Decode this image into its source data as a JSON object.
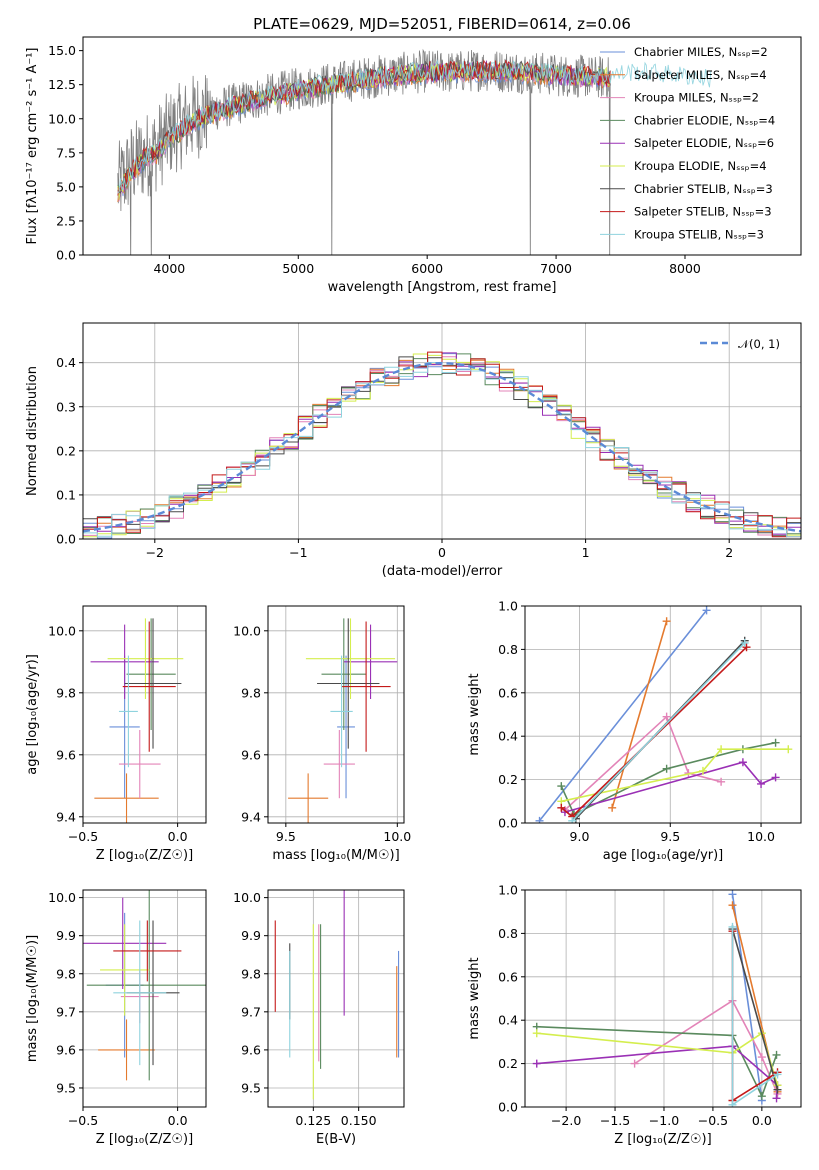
{
  "colors": [
    "#6a8fd9",
    "#e47a2e",
    "#e384b8",
    "#5a8a5e",
    "#9a30b5",
    "#d4ee4e",
    "#4a4a4a",
    "#c41a1a",
    "#8fd3de"
  ],
  "chart_data": [
    {
      "id": "spectrum",
      "type": "line",
      "title": "PLATE=0629, MJD=52051, FIBERID=0614, z=0.06",
      "xlabel": "wavelength [Angstrom, rest frame]",
      "ylabel": "Flux [fλ10⁻¹⁷ erg cm⁻² s⁻¹ A⁻¹]",
      "xlim": [
        3330,
        8900
      ],
      "ylim": [
        0,
        16
      ],
      "xticks": [
        4000,
        5000,
        6000,
        7000,
        8000
      ],
      "yticks": [
        0.0,
        2.5,
        5.0,
        7.5,
        10.0,
        12.5,
        15.0
      ],
      "grid": false,
      "legend_position": "top-right",
      "legend": [
        "Chabrier MILES, Nₛₛₚ=2",
        "Salpeter MILES, Nₛₛₚ=4",
        "Kroupa MILES, Nₛₛₚ=2",
        "Chabrier ELODIE, Nₛₛₚ=4",
        "Salpeter ELODIE, Nₛₛₚ=6",
        "Kroupa ELODIE, Nₛₛₚ=4",
        "Chabrier STELIB, Nₛₛₚ=3",
        "Salpeter STELIB, Nₛₛₚ=3",
        "Kroupa STELIB, Nₛₛₚ=3"
      ],
      "data_series": {
        "name": "data",
        "x": [
          3600,
          3700,
          3800,
          3900,
          4000,
          4200,
          4400,
          4600,
          4800,
          5000,
          5200,
          5400,
          5600,
          5800,
          6000,
          6200,
          6400,
          6600,
          6800,
          7000,
          7200,
          7400
        ],
        "y": [
          5.0,
          6.5,
          7.2,
          7.8,
          8.9,
          10.2,
          10.8,
          11.3,
          11.8,
          12.2,
          12.5,
          12.8,
          13.1,
          13.3,
          13.5,
          13.4,
          13.6,
          13.5,
          13.4,
          13.2,
          13.1,
          13.0
        ]
      },
      "model_series": {
        "x": [
          3600,
          3700,
          3800,
          3900,
          4000,
          4200,
          4400,
          4600,
          4800,
          5000,
          5200,
          5400,
          5600,
          5800,
          6000,
          6200,
          6400,
          6600,
          6800,
          7000,
          7200,
          7400,
          7600,
          7800,
          8000,
          8200
        ],
        "y": [
          4.5,
          6.0,
          7.0,
          7.5,
          8.5,
          9.9,
          10.6,
          11.2,
          11.6,
          12.1,
          12.4,
          12.7,
          13.0,
          13.2,
          13.4,
          13.4,
          13.5,
          13.5,
          13.4,
          13.2,
          13.1,
          13.0,
          13.3,
          13.2,
          13.0,
          12.8
        ]
      }
    },
    {
      "id": "residuals",
      "type": "histogram",
      "xlabel": "(data-model)/error",
      "ylabel": "Normed distribution",
      "xlim": [
        -2.5,
        2.5
      ],
      "ylim": [
        0,
        0.49
      ],
      "xticks": [
        -2,
        -1,
        0,
        1,
        2
      ],
      "yticks": [
        0.0,
        0.1,
        0.2,
        0.3,
        0.4
      ],
      "grid": true,
      "legend": [
        "𝒩(0, 1)"
      ],
      "legend_position": "top-right",
      "bin_width": 0.1
    },
    {
      "id": "age-vs-Z",
      "type": "errorbar",
      "xlabel": "Z [log₁₀(Z/Z☉)]",
      "ylabel": "age  [log₁₀(age/yr)]",
      "xlim": [
        -0.5,
        0.15
      ],
      "ylim": [
        9.38,
        10.08
      ],
      "xticks": [
        -0.5,
        0.0
      ],
      "yticks": [
        9.4,
        9.6,
        9.8,
        10.0
      ],
      "grid": true,
      "points": [
        {
          "x": -0.28,
          "xerr": 0.08,
          "y": 9.69,
          "yerr": 0.23
        },
        {
          "x": -0.27,
          "xerr": 0.17,
          "y": 9.46,
          "yerr": 0.08
        },
        {
          "x": -0.2,
          "xerr": 0.11,
          "y": 9.57,
          "yerr": 0.11
        },
        {
          "x": -0.14,
          "xerr": 0.13,
          "y": 9.86,
          "yerr": 0.18
        },
        {
          "x": -0.28,
          "xerr": 0.18,
          "y": 9.9,
          "yerr": 0.12
        },
        {
          "x": -0.17,
          "xerr": 0.2,
          "y": 9.91,
          "yerr": 0.13
        },
        {
          "x": -0.13,
          "xerr": 0.15,
          "y": 9.83,
          "yerr": 0.21
        },
        {
          "x": -0.15,
          "xerr": 0.14,
          "y": 9.82,
          "yerr": 0.21
        },
        {
          "x": -0.26,
          "xerr": 0.05,
          "y": 9.74,
          "yerr": 0.18
        }
      ]
    },
    {
      "id": "age-vs-mass",
      "type": "errorbar",
      "xlabel": "mass [log₁₀(M/M☉)]",
      "xlim": [
        9.42,
        10.03
      ],
      "ylim": [
        9.38,
        10.08
      ],
      "xticks": [
        9.5,
        10.0
      ],
      "yticks": [
        9.4,
        9.6,
        9.8,
        10.0
      ],
      "grid": true,
      "points": [
        {
          "x": 9.77,
          "xerr": 0.04,
          "y": 9.69,
          "yerr": 0.23
        },
        {
          "x": 9.6,
          "xerr": 0.09,
          "y": 9.46,
          "yerr": 0.08
        },
        {
          "x": 9.74,
          "xerr": 0.07,
          "y": 9.57,
          "yerr": 0.11
        },
        {
          "x": 9.76,
          "xerr": 0.1,
          "y": 9.86,
          "yerr": 0.18
        },
        {
          "x": 9.88,
          "xerr": 0.12,
          "y": 9.9,
          "yerr": 0.12
        },
        {
          "x": 9.79,
          "xerr": 0.2,
          "y": 9.91,
          "yerr": 0.13
        },
        {
          "x": 9.78,
          "xerr": 0.14,
          "y": 9.83,
          "yerr": 0.21
        },
        {
          "x": 9.86,
          "xerr": 0.11,
          "y": 9.82,
          "yerr": 0.21
        },
        {
          "x": 9.75,
          "xerr": 0.05,
          "y": 9.74,
          "yerr": 0.18
        }
      ]
    },
    {
      "id": "weight-vs-age",
      "type": "line",
      "xlabel": "age  [log₁₀(age/yr)]",
      "ylabel": "mass weight",
      "xlim": [
        8.7,
        10.22
      ],
      "ylim": [
        0,
        1.0
      ],
      "xticks": [
        9.0,
        9.5,
        10.0
      ],
      "yticks": [
        0.0,
        0.2,
        0.4,
        0.6,
        0.8,
        1.0
      ],
      "grid": true,
      "series": [
        {
          "x": [
            8.78,
            9.7
          ],
          "y": [
            0.01,
            0.98
          ]
        },
        {
          "x": [
            9.18,
            9.48
          ],
          "y": [
            0.07,
            0.93
          ]
        },
        {
          "x": [
            8.92,
            9.48,
            9.6,
            9.78
          ],
          "y": [
            0.06,
            0.49,
            0.23,
            0.19
          ]
        },
        {
          "x": [
            8.9,
            8.97,
            9.48,
            9.9,
            10.08
          ],
          "y": [
            0.17,
            0.04,
            0.25,
            0.34,
            0.37
          ]
        },
        {
          "x": [
            8.92,
            9.9,
            10.0,
            10.08
          ],
          "y": [
            0.05,
            0.28,
            0.18,
            0.21
          ]
        },
        {
          "x": [
            8.9,
            9.68,
            9.78,
            10.15
          ],
          "y": [
            0.1,
            0.24,
            0.34,
            0.34
          ]
        },
        {
          "x": [
            8.98,
            9.91
          ],
          "y": [
            0.02,
            0.84
          ]
        },
        {
          "x": [
            8.9,
            8.96,
            9.92
          ],
          "y": [
            0.07,
            0.03,
            0.81
          ]
        },
        {
          "x": [
            8.96,
            9.91
          ],
          "y": [
            0.01,
            0.83
          ]
        }
      ]
    },
    {
      "id": "mass-vs-Z",
      "type": "errorbar",
      "xlabel": "Z [log₁₀(Z/Z☉)]",
      "ylabel": "mass [log₁₀(M/M☉)]",
      "xlim": [
        -0.5,
        0.15
      ],
      "ylim": [
        9.45,
        10.02
      ],
      "xticks": [
        -0.5,
        0.0
      ],
      "yticks": [
        9.5,
        9.6,
        9.7,
        9.8,
        9.9,
        10.0
      ],
      "grid": true,
      "points": [
        {
          "x": -0.28,
          "xerr": 0.1,
          "y": 9.77,
          "yerr": 0.19
        },
        {
          "x": -0.27,
          "xerr": 0.15,
          "y": 9.6,
          "yerr": 0.08
        },
        {
          "x": -0.2,
          "xerr": 0.1,
          "y": 9.74,
          "yerr": 0.07
        },
        {
          "x": -0.15,
          "xerr": 0.33,
          "y": 9.77,
          "yerr": 0.25
        },
        {
          "x": -0.29,
          "xerr": 0.23,
          "y": 9.88,
          "yerr": 0.12
        },
        {
          "x": -0.28,
          "xerr": 0.13,
          "y": 9.81,
          "yerr": 0.12
        },
        {
          "x": -0.13,
          "xerr": 0.14,
          "y": 9.75,
          "yerr": 0.19
        },
        {
          "x": -0.16,
          "xerr": 0.18,
          "y": 9.86,
          "yerr": 0.08
        },
        {
          "x": -0.2,
          "xerr": 0.14,
          "y": 9.75,
          "yerr": 0.19
        }
      ]
    },
    {
      "id": "mass-vs-ebv",
      "type": "errorbar",
      "xlabel": "E(B-V)",
      "xlim": [
        0.1,
        0.175
      ],
      "ylim": [
        9.45,
        10.02
      ],
      "xticks": [
        0.125,
        0.15
      ],
      "yticks": [
        9.5,
        9.6,
        9.7,
        9.8,
        9.9,
        10.0
      ],
      "grid": true,
      "points": [
        {
          "x": 0.172,
          "y": 9.72,
          "yerr": 0.14
        },
        {
          "x": 0.171,
          "y": 9.7,
          "yerr": 0.12
        },
        {
          "x": 0.128,
          "y": 9.75,
          "yerr": 0.18
        },
        {
          "x": 0.129,
          "y": 9.74,
          "yerr": 0.19
        },
        {
          "x": 0.142,
          "y": 9.88,
          "yerr": 0.19
        },
        {
          "x": 0.125,
          "y": 9.7,
          "yerr": 0.23
        },
        {
          "x": 0.112,
          "y": 9.78,
          "yerr": 0.1
        },
        {
          "x": 0.104,
          "y": 9.82,
          "yerr": 0.12
        },
        {
          "x": 0.112,
          "y": 9.72,
          "yerr": 0.14
        }
      ]
    },
    {
      "id": "weight-vs-Z",
      "type": "line",
      "xlabel": "Z [log₁₀(Z/Z☉)]",
      "ylabel": "mass weight",
      "xlim": [
        -2.42,
        0.4
      ],
      "ylim": [
        0,
        1.0
      ],
      "xticks": [
        -2.0,
        -1.5,
        -1.0,
        -0.5,
        0.0
      ],
      "yticks": [
        0.0,
        0.2,
        0.4,
        0.6,
        0.8,
        1.0
      ],
      "grid": true,
      "series": [
        {
          "x": [
            -0.3,
            0.0
          ],
          "y": [
            0.98,
            0.03
          ]
        },
        {
          "x": [
            -0.3,
            0.16
          ],
          "y": [
            0.93,
            0.07
          ]
        },
        {
          "x": [
            -1.3,
            -0.3,
            0.0,
            0.16
          ],
          "y": [
            0.2,
            0.49,
            0.23,
            0.06
          ]
        },
        {
          "x": [
            -2.3,
            -0.3,
            0.0,
            0.15
          ],
          "y": [
            0.37,
            0.33,
            0.05,
            0.24
          ]
        },
        {
          "x": [
            -2.3,
            -0.3,
            0.16,
            0.15
          ],
          "y": [
            0.2,
            0.28,
            0.1,
            0.04
          ]
        },
        {
          "x": [
            -2.3,
            -0.3,
            0.0,
            0.16
          ],
          "y": [
            0.34,
            0.25,
            0.34,
            0.1
          ]
        },
        {
          "x": [
            -0.3,
            0.16
          ],
          "y": [
            0.82,
            0.08
          ]
        },
        {
          "x": [
            -0.3,
            -0.3,
            0.16
          ],
          "y": [
            0.81,
            0.03,
            0.16
          ]
        },
        {
          "x": [
            -0.3,
            -0.3,
            0.16
          ],
          "y": [
            0.83,
            0.01,
            0.15
          ]
        }
      ]
    }
  ]
}
